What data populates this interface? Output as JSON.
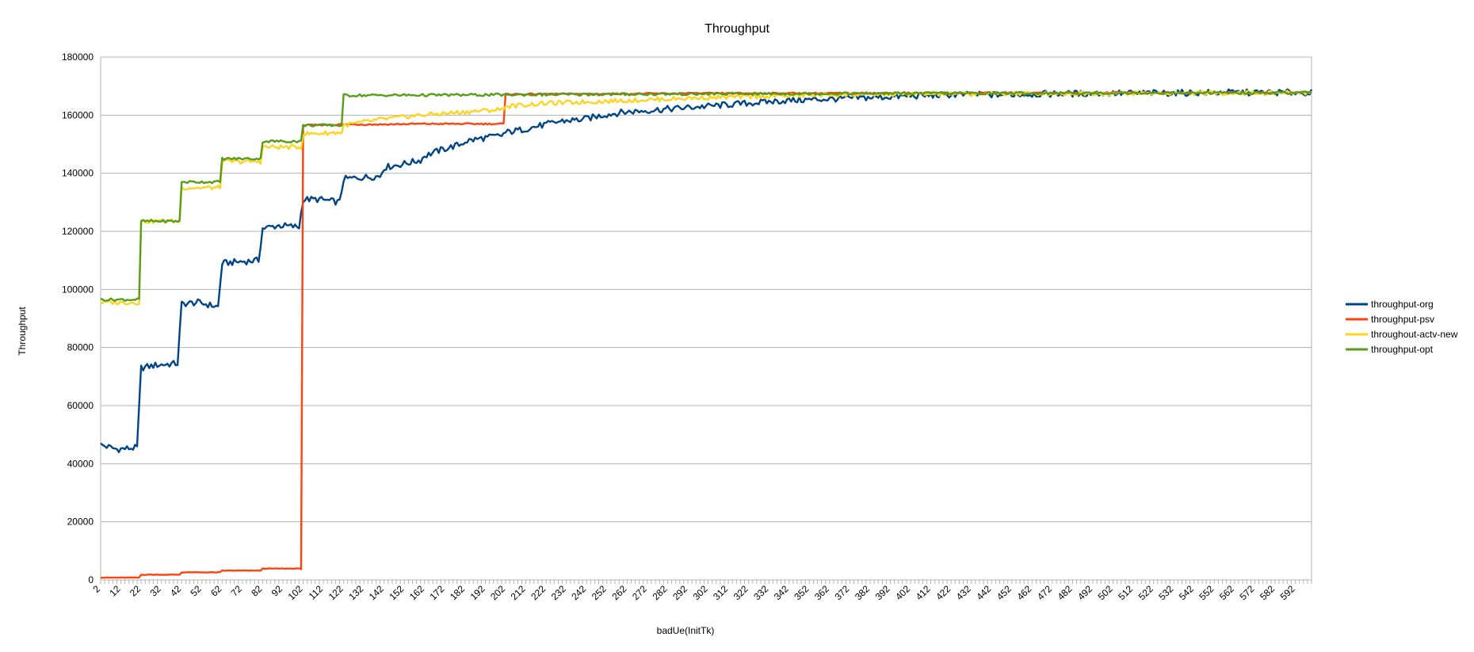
{
  "chart_data": {
    "type": "line",
    "title": "Throughput",
    "xlabel": "badUe(InitTk)",
    "ylabel": "Throughput",
    "xlim": [
      2,
      600
    ],
    "ylim": [
      0,
      180000
    ],
    "y_ticks": [
      0,
      20000,
      40000,
      60000,
      80000,
      100000,
      120000,
      140000,
      160000,
      180000
    ],
    "x_ticks": [
      "2",
      "12",
      "22",
      "32",
      "42",
      "52",
      "62",
      "72",
      "82",
      "92",
      "102",
      "112",
      "122",
      "132",
      "142",
      "152",
      "162",
      "172",
      "182",
      "192",
      "202",
      "212",
      "222",
      "232",
      "242",
      "252",
      "262",
      "272",
      "282",
      "292",
      "302",
      "312",
      "322",
      "332",
      "342",
      "352",
      "362",
      "372",
      "382",
      "392",
      "402",
      "412",
      "422",
      "432",
      "442",
      "452",
      "462",
      "472",
      "482",
      "492",
      "502",
      "512",
      "522",
      "532",
      "542",
      "552",
      "562",
      "572",
      "582",
      "592"
    ],
    "grid": "horizontal",
    "legend_position": "right",
    "series": [
      {
        "name": "throughput-org",
        "color": "#004586",
        "x": [
          2,
          10,
          20,
          22,
          30,
          40,
          42,
          50,
          60,
          62,
          70,
          80,
          82,
          90,
          100,
          102,
          110,
          120,
          122,
          130,
          140,
          142,
          150,
          160,
          162,
          170,
          180,
          182,
          190,
          200,
          202,
          210,
          220,
          230,
          240,
          250,
          260,
          270,
          280,
          290,
          300,
          310,
          320,
          340,
          360,
          380,
          400,
          420,
          440,
          460,
          480,
          500,
          520,
          540,
          560,
          580,
          600
        ],
        "y": [
          46500,
          45000,
          45500,
          73000,
          74000,
          74500,
          95000,
          95500,
          94000,
          109000,
          109500,
          110000,
          121000,
          122000,
          121500,
          131000,
          131000,
          130000,
          138000,
          138500,
          139000,
          142000,
          143000,
          144500,
          146000,
          148000,
          150000,
          151000,
          152000,
          153000,
          154000,
          155000,
          156500,
          158000,
          158500,
          160000,
          161000,
          161500,
          162000,
          162500,
          163000,
          163500,
          164000,
          165000,
          165500,
          166000,
          166500,
          167000,
          167000,
          167200,
          167400,
          167500,
          167600,
          167700,
          167800,
          167800,
          167800
        ]
      },
      {
        "name": "throughput-psv",
        "color": "#ff420e",
        "x": [
          2,
          20,
          21,
          22,
          40,
          41,
          42,
          60,
          61,
          62,
          80,
          81,
          82,
          100,
          101,
          102,
          120,
          140,
          160,
          180,
          200,
          201,
          202,
          300,
          400,
          500,
          600
        ],
        "y": [
          800,
          800,
          800,
          1800,
          1800,
          1800,
          2600,
          2600,
          2600,
          3200,
          3200,
          3200,
          3900,
          3900,
          3900,
          156500,
          156800,
          156800,
          157000,
          157000,
          157000,
          157000,
          167200,
          167500,
          167600,
          167700,
          167800
        ]
      },
      {
        "name": "throughout-actv-new",
        "color": "#ffd320",
        "x": [
          2,
          20,
          21,
          22,
          40,
          41,
          42,
          60,
          61,
          62,
          80,
          81,
          82,
          100,
          101,
          102,
          120,
          121,
          122,
          140,
          160,
          180,
          200,
          202,
          220,
          240,
          260,
          280,
          300,
          330,
          360,
          400,
          450,
          500,
          550,
          600
        ],
        "y": [
          95500,
          95500,
          95500,
          123500,
          123500,
          123500,
          135000,
          135000,
          135000,
          144000,
          144000,
          144000,
          149000,
          149000,
          149000,
          153500,
          154000,
          154000,
          156500,
          158500,
          160000,
          161000,
          162000,
          163000,
          164000,
          164500,
          165000,
          165500,
          166000,
          166500,
          167000,
          167200,
          167400,
          167500,
          167600,
          167700
        ]
      },
      {
        "name": "throughput-opt",
        "color": "#579d1c",
        "x": [
          2,
          20,
          21,
          22,
          40,
          41,
          42,
          60,
          61,
          62,
          80,
          81,
          82,
          100,
          101,
          102,
          120,
          121,
          122,
          200,
          300,
          400,
          500,
          600
        ],
        "y": [
          96500,
          96500,
          96500,
          123500,
          123500,
          123500,
          137000,
          137000,
          137000,
          145000,
          145000,
          145000,
          151000,
          151000,
          151000,
          156500,
          156500,
          156500,
          166800,
          167000,
          167300,
          167500,
          167600,
          167700
        ]
      }
    ]
  }
}
